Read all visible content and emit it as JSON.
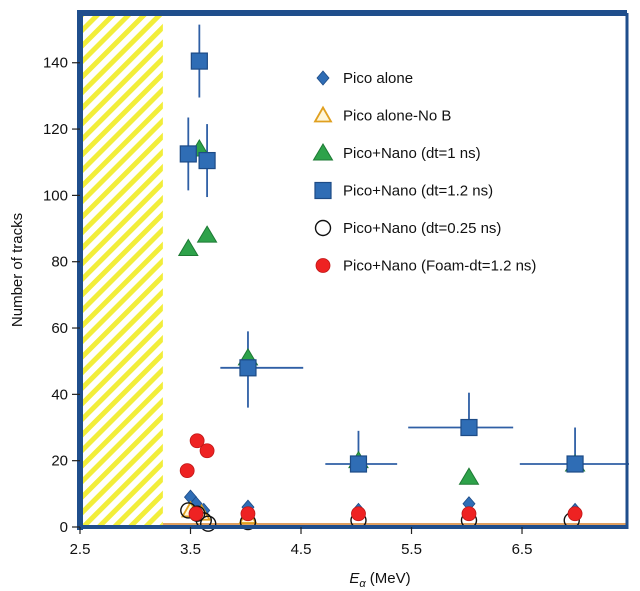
{
  "chart_data": {
    "type": "scatter",
    "xlabel": "E",
    "xlabel_subscript": "α",
    "xlabel_unit": " (MeV)",
    "ylabel": "Number of tracks",
    "xlim": [
      2.5,
      7.45
    ],
    "ylim": [
      0,
      155
    ],
    "xticks": [
      "2.5",
      "3.5",
      "4.5",
      "5.5",
      "6.5"
    ],
    "xtick_values": [
      2.5,
      3.5,
      4.5,
      5.5,
      6.5
    ],
    "yticks": [
      "0",
      "20",
      "40",
      "60",
      "80",
      "100",
      "120",
      "140"
    ],
    "ytick_values": [
      0,
      20,
      40,
      60,
      80,
      100,
      120,
      140
    ],
    "excluded_region": {
      "x_from": 2.5,
      "x_to": 3.25
    },
    "grid": false,
    "legend_position": "top-right",
    "colors": {
      "frame": "#1f4e8c",
      "hatch": "#f2ee3a",
      "baseline": "#e0a060",
      "blue": "#2f6db5",
      "green": "#2ea24a",
      "red": "#ee2222",
      "triangle_outline": "#e0a020",
      "errorbar": "#2f5fa5"
    },
    "series": [
      {
        "name": "Pico alone",
        "marker": "diamond",
        "points": [
          {
            "x": 3.5,
            "y": 9
          },
          {
            "x": 3.55,
            "y": 7
          },
          {
            "x": 3.62,
            "y": 5
          },
          {
            "x": 4.02,
            "y": 6
          },
          {
            "x": 5.02,
            "y": 5
          },
          {
            "x": 6.02,
            "y": 7
          },
          {
            "x": 6.98,
            "y": 5
          }
        ]
      },
      {
        "name": "Pico alone-No B",
        "marker": "triangle-open",
        "points": [
          {
            "x": 3.5,
            "y": 5
          },
          {
            "x": 3.6,
            "y": 4
          },
          {
            "x": 4.02,
            "y": 3
          }
        ]
      },
      {
        "name": "Pico+Nano (dt=1 ns)",
        "marker": "triangle",
        "points": [
          {
            "x": 3.48,
            "y": 84
          },
          {
            "x": 3.58,
            "y": 114
          },
          {
            "x": 3.65,
            "y": 88
          },
          {
            "x": 4.02,
            "y": 51
          },
          {
            "x": 5.02,
            "y": 20
          },
          {
            "x": 6.02,
            "y": 15
          },
          {
            "x": 6.98,
            "y": 19
          }
        ]
      },
      {
        "name": "Pico+Nano (dt=1.2 ns)",
        "marker": "square",
        "points": [
          {
            "x": 3.48,
            "y": 112.5,
            "xerr": [
              0,
              0
            ],
            "yerr": [
              11,
              11
            ]
          },
          {
            "x": 3.58,
            "y": 140.5,
            "xerr": [
              0.04,
              0
            ],
            "yerr": [
              11,
              11
            ]
          },
          {
            "x": 3.65,
            "y": 110.5,
            "xerr": [
              0,
              0
            ],
            "yerr": [
              11,
              11
            ]
          },
          {
            "x": 4.02,
            "y": 48,
            "xerr": [
              0.25,
              0.5
            ],
            "yerr": [
              12,
              11
            ]
          },
          {
            "x": 5.02,
            "y": 19,
            "xerr": [
              0.3,
              0.35
            ],
            "yerr": [
              0,
              10
            ]
          },
          {
            "x": 6.02,
            "y": 30,
            "xerr": [
              0.55,
              0.4
            ],
            "yerr": [
              0,
              10.5
            ]
          },
          {
            "x": 6.98,
            "y": 19,
            "xerr": [
              0.5,
              0.58
            ],
            "yerr": [
              0,
              11
            ]
          }
        ]
      },
      {
        "name": "Pico+Nano (dt=0.25 ns)",
        "marker": "circle-open",
        "points": [
          {
            "x": 3.48,
            "y": 5
          },
          {
            "x": 3.56,
            "y": 4
          },
          {
            "x": 3.62,
            "y": 2
          },
          {
            "x": 3.66,
            "y": 1
          },
          {
            "x": 4.02,
            "y": 1.5
          },
          {
            "x": 5.02,
            "y": 2
          },
          {
            "x": 6.02,
            "y": 2
          },
          {
            "x": 6.95,
            "y": 2
          }
        ]
      },
      {
        "name": "Pico+Nano (Foam-dt=1.2 ns)",
        "marker": "circle",
        "points": [
          {
            "x": 3.47,
            "y": 17
          },
          {
            "x": 3.56,
            "y": 26
          },
          {
            "x": 3.65,
            "y": 23
          },
          {
            "x": 3.55,
            "y": 4
          },
          {
            "x": 4.02,
            "y": 4
          },
          {
            "x": 5.02,
            "y": 4
          },
          {
            "x": 6.02,
            "y": 4
          },
          {
            "x": 6.98,
            "y": 4
          }
        ]
      }
    ]
  }
}
